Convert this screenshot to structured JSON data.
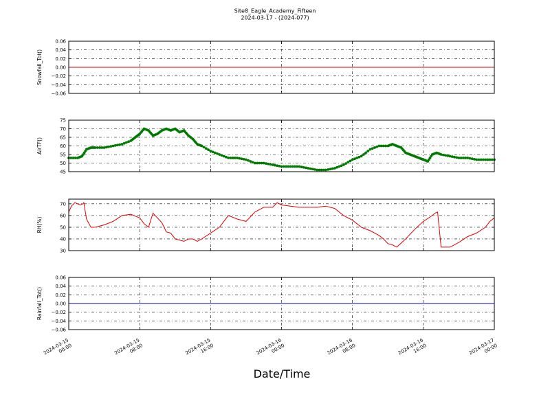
{
  "figure": {
    "title_line1": "Site8_Eagle_Academy_Fifteen",
    "title_line2": "2024-03-17 - (2024-077)",
    "xlabel": "Date/Time"
  },
  "chart_data": [
    {
      "type": "line",
      "ylabel": "Snowfall_Tot()",
      "ylim": [
        -0.06,
        0.06
      ],
      "yticks": [
        "0.06",
        "0.04",
        "0.02",
        "0.00",
        "−0.02",
        "−0.04",
        "−0.06"
      ],
      "ytick_values": [
        0.06,
        0.04,
        0.02,
        0.0,
        -0.02,
        -0.04,
        -0.06
      ],
      "xlim": [
        "2024-03-15 00:00",
        "2024-03-17 00:00"
      ],
      "xlim_hours": [
        0,
        48
      ],
      "grid": true,
      "series": [
        {
          "color": "#e00000",
          "marker": "none",
          "x_hours": [
            0,
            48
          ],
          "values": [
            0,
            0
          ]
        }
      ]
    },
    {
      "type": "line",
      "ylabel": "AirTF()",
      "ylim": [
        45,
        75
      ],
      "yticks": [
        "75",
        "70",
        "65",
        "60",
        "55",
        "50",
        "45"
      ],
      "ytick_values": [
        75,
        70,
        65,
        60,
        55,
        50,
        45
      ],
      "xlim": [
        "2024-03-15 00:00",
        "2024-03-17 00:00"
      ],
      "xlim_hours": [
        0,
        48
      ],
      "grid": true,
      "series": [
        {
          "color": "#007a00",
          "marker": "dot",
          "x_hours": [
            0,
            1,
            1.5,
            2,
            2.5,
            3,
            4,
            5,
            6,
            7,
            7.5,
            8,
            8.5,
            9,
            9.5,
            10,
            10.5,
            11,
            11.5,
            12,
            12.5,
            13,
            13.5,
            14,
            14.5,
            15,
            16,
            17,
            18,
            19,
            20,
            21,
            22,
            23,
            24,
            25,
            26,
            27,
            28,
            29,
            30,
            31,
            32,
            33,
            34,
            35,
            36,
            36.5,
            37,
            37.5,
            38,
            38.5,
            39,
            39.5,
            40,
            40.5,
            41,
            41.5,
            42,
            43,
            44,
            45,
            46,
            47,
            48
          ],
          "values": [
            53,
            53,
            54,
            58,
            59,
            59,
            59,
            60,
            61,
            63,
            65,
            67,
            70,
            69,
            66,
            67,
            69,
            70,
            69,
            70,
            68,
            69,
            66,
            64,
            61,
            60,
            57,
            55,
            53,
            53,
            52,
            50,
            50,
            49,
            48,
            48,
            48,
            47,
            46,
            46,
            47,
            49,
            52,
            54,
            58,
            60,
            60,
            61,
            60,
            59,
            56,
            55,
            54,
            53,
            52,
            51,
            55,
            56,
            55,
            54,
            53,
            53,
            52,
            52,
            52
          ]
        }
      ]
    },
    {
      "type": "line",
      "ylabel": "RH(%)",
      "ylim": [
        30,
        74
      ],
      "yticks": [
        "70",
        "60",
        "50",
        "40",
        "30"
      ],
      "ytick_values": [
        70,
        60,
        50,
        40,
        30
      ],
      "xlim": [
        "2024-03-15 00:00",
        "2024-03-17 00:00"
      ],
      "xlim_hours": [
        0,
        48
      ],
      "grid": true,
      "series": [
        {
          "color": "#e00000",
          "marker": "none",
          "x_hours": [
            0,
            0.3,
            0.7,
            1.0,
            1.3,
            1.6,
            1.7,
            2.0,
            2.5,
            3,
            4,
            5,
            6,
            7,
            8,
            8.5,
            9,
            9.5,
            10,
            10.5,
            11,
            11.5,
            12,
            13,
            13.5,
            14,
            14.5,
            15,
            16,
            17,
            18,
            19,
            20,
            21,
            22,
            23,
            23.5,
            24,
            25,
            26,
            27,
            28,
            29,
            30,
            31,
            32,
            33,
            34,
            35,
            35.5,
            36,
            36.5,
            37,
            38,
            39,
            40,
            41,
            41.3,
            41.6,
            42,
            43,
            44,
            45,
            46,
            47,
            47.5,
            48
          ],
          "values": [
            63,
            68,
            71,
            70,
            69,
            70,
            71,
            57,
            50,
            50,
            52,
            55,
            60,
            61,
            58,
            53,
            50,
            62,
            58,
            54,
            46,
            45,
            40,
            38,
            40,
            40,
            38,
            40,
            45,
            50,
            60,
            57,
            55,
            63,
            67,
            67,
            71,
            69,
            68,
            67,
            67,
            67,
            68,
            66,
            60,
            56,
            50,
            47,
            43,
            40,
            36,
            35,
            33,
            40,
            48,
            55,
            60,
            62,
            63,
            33,
            33,
            37,
            42,
            45,
            50,
            55,
            58
          ]
        }
      ]
    },
    {
      "type": "line",
      "ylabel": "Rainfall_Tot()",
      "ylim": [
        -0.06,
        0.06
      ],
      "yticks": [
        "0.06",
        "0.04",
        "0.02",
        "0.00",
        "−0.02",
        "−0.04",
        "−0.06"
      ],
      "ytick_values": [
        0.06,
        0.04,
        0.02,
        0.0,
        -0.02,
        -0.04,
        -0.06
      ],
      "xlim": [
        "2024-03-15 00:00",
        "2024-03-17 00:00"
      ],
      "xlim_hours": [
        0,
        48
      ],
      "grid": true,
      "series": [
        {
          "color": "#0000cc",
          "marker": "none",
          "x_hours": [
            0,
            48
          ],
          "values": [
            0,
            0
          ]
        }
      ]
    }
  ],
  "xticks": [
    {
      "hours": 0,
      "line1": "2024-03-15",
      "line2": "00:00"
    },
    {
      "hours": 8,
      "line1": "2024-03-15",
      "line2": "08:00"
    },
    {
      "hours": 16,
      "line1": "2024-03-15",
      "line2": "16:00"
    },
    {
      "hours": 24,
      "line1": "2024-03-16",
      "line2": "00:00"
    },
    {
      "hours": 32,
      "line1": "2024-03-16",
      "line2": "08:00"
    },
    {
      "hours": 40,
      "line1": "2024-03-16",
      "line2": "16:00"
    },
    {
      "hours": 48,
      "line1": "2024-03-17",
      "line2": "00:00"
    }
  ]
}
